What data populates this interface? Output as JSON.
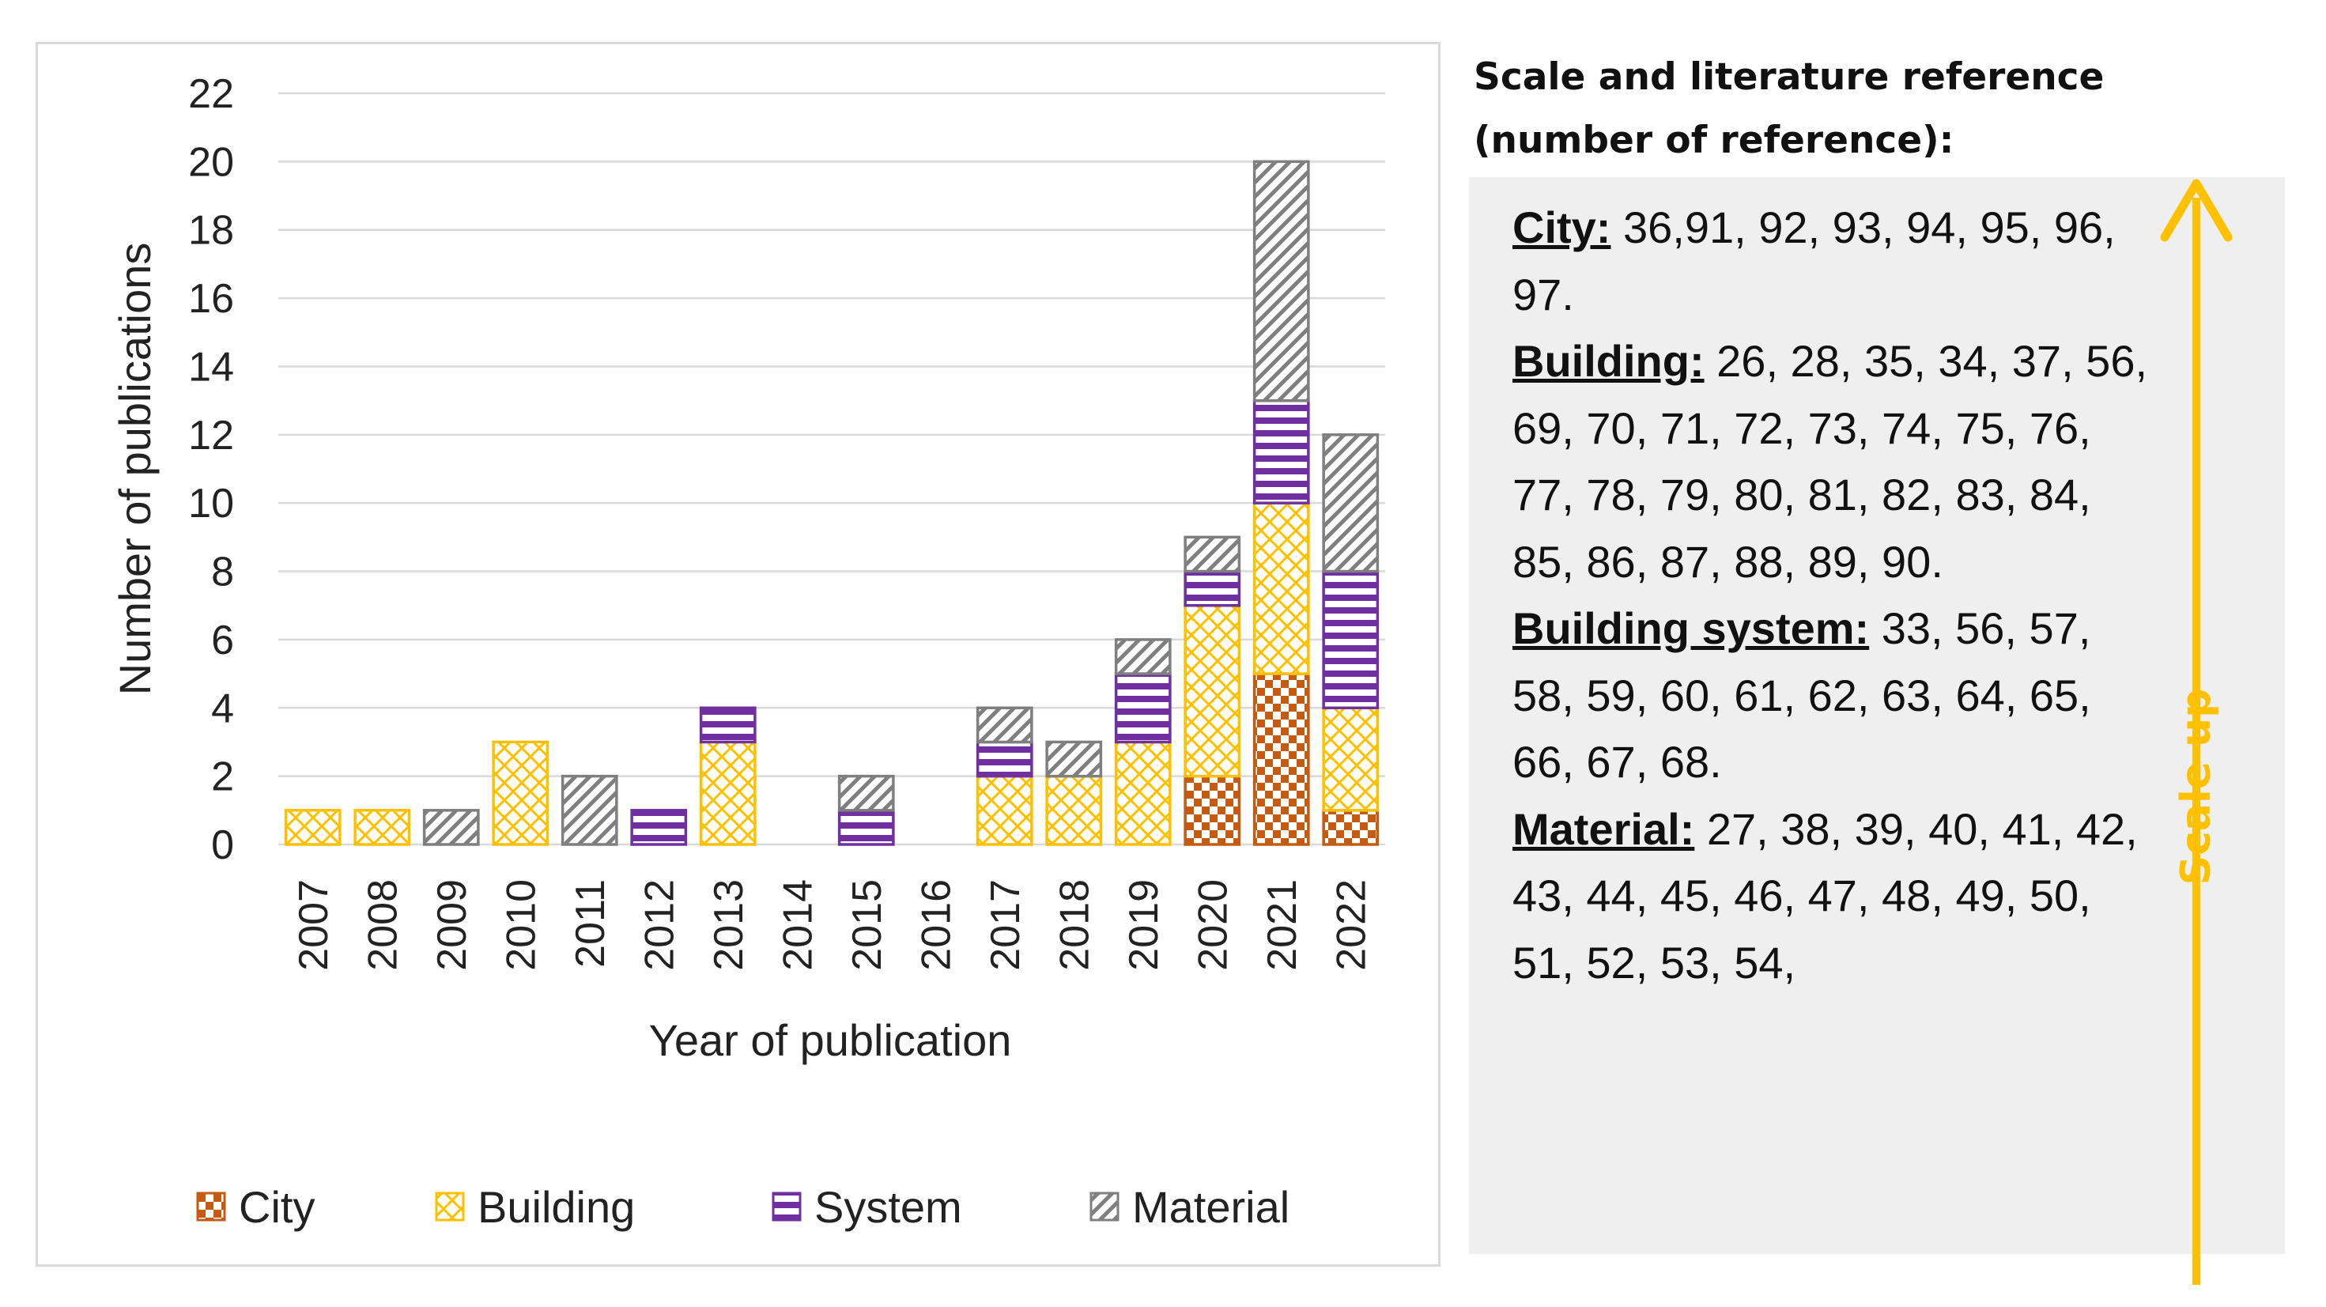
{
  "chart_data": {
    "type": "bar",
    "stacked": true,
    "categories": [
      "2007",
      "2008",
      "2009",
      "2010",
      "2011",
      "2012",
      "2013",
      "2014",
      "2015",
      "2016",
      "2017",
      "2018",
      "2019",
      "2020",
      "2021",
      "2022"
    ],
    "series": [
      {
        "name": "City",
        "values": [
          0,
          0,
          0,
          0,
          0,
          0,
          0,
          0,
          0,
          0,
          0,
          0,
          0,
          2,
          5,
          1
        ],
        "color": "#c55a11",
        "pattern": "checker"
      },
      {
        "name": "Building",
        "values": [
          1,
          1,
          0,
          3,
          0,
          0,
          3,
          0,
          0,
          0,
          2,
          2,
          3,
          5,
          5,
          3
        ],
        "color": "#ffc000",
        "pattern": "crosshatch"
      },
      {
        "name": "System",
        "values": [
          0,
          0,
          0,
          0,
          0,
          1,
          1,
          0,
          1,
          0,
          1,
          0,
          2,
          1,
          3,
          4
        ],
        "color": "#7030a0",
        "pattern": "horizontal-stripes"
      },
      {
        "name": "Material",
        "values": [
          0,
          0,
          1,
          0,
          2,
          0,
          0,
          0,
          1,
          0,
          1,
          1,
          1,
          1,
          7,
          4
        ],
        "color": "#7f7f7f",
        "pattern": "diagonal-stripes"
      }
    ],
    "title": "",
    "xlabel": "Year of publication",
    "ylabel": "Number of publications",
    "ylim": [
      0,
      22
    ],
    "yticks": [
      0,
      2,
      4,
      6,
      8,
      10,
      12,
      14,
      16,
      18,
      20,
      22
    ],
    "grid": true,
    "legend": "bottom"
  },
  "references": {
    "title_line1": "Scale and literature reference",
    "title_line2": "(number of reference):",
    "entries": [
      {
        "label": "City:",
        "text": " 36,91, 92, 93, 94, 95, 96, 97."
      },
      {
        "label": "Building:",
        "text": " 26, 28, 35, 34, 37, 56, 69, 70, 71, 72, 73, 74, 75, 76, 77, 78, 79, 80, 81, 82, 83, 84, 85, 86, 87, 88, 89, 90."
      },
      {
        "label": "Building system:",
        "text": " 33, 56, 57, 58, 59, 60, 61, 62, 63, 64, 65, 66, 67, 68."
      },
      {
        "label": "Material:",
        "text": " 27, 38, 39, 40, 41, 42, 43, 44, 45, 46, 47, 48, 49, 50, 51, 52, 53, 54,"
      }
    ],
    "arrow_label": "Scale up",
    "arrow_color": "#ffc000"
  }
}
